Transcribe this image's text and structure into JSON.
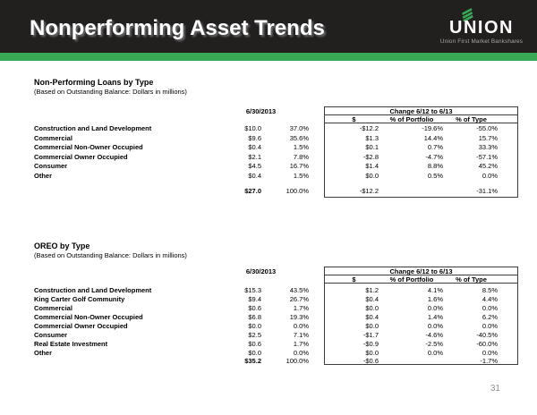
{
  "slide": {
    "title": "Nonperforming Asset Trends",
    "page_number": "31",
    "logo": {
      "name": "UNION",
      "tagline": "Union First Market Bankshares"
    },
    "colors": {
      "header_bg": "#221f1f",
      "accent_green": "#38a957"
    }
  },
  "tables": [
    {
      "title": "Non-Performing Loans by Type",
      "subtitle": "(Based on Outstanding Balance: Dollars in millions)",
      "date_header": "6/30/2013",
      "change_header": "Change 6/12 to 6/13",
      "columns": {
        "dollar": "$",
        "portfolio": "% of Portfolio",
        "type": "% of Type"
      },
      "rows": [
        {
          "label": "Construction and Land Development",
          "amount": "$10.0",
          "pct": "37.0%",
          "chg_amount": "-$12.2",
          "chg_portfolio": "-19.6%",
          "chg_type": "-55.0%"
        },
        {
          "label": "Commercial",
          "amount": "$9.6",
          "pct": "35.6%",
          "chg_amount": "$1.3",
          "chg_portfolio": "14.4%",
          "chg_type": "15.7%"
        },
        {
          "label": "Commercial Non-Owner Occupied",
          "amount": "$0.4",
          "pct": "1.5%",
          "chg_amount": "$0.1",
          "chg_portfolio": "0.7%",
          "chg_type": "33.3%"
        },
        {
          "label": "Commercial Owner Occupied",
          "amount": "$2.1",
          "pct": "7.8%",
          "chg_amount": "-$2.8",
          "chg_portfolio": "-4.7%",
          "chg_type": "-57.1%"
        },
        {
          "label": "Consumer",
          "amount": "$4.5",
          "pct": "16.7%",
          "chg_amount": "$1.4",
          "chg_portfolio": "8.8%",
          "chg_type": "45.2%"
        },
        {
          "label": "Other",
          "amount": "$0.4",
          "pct": "1.5%",
          "chg_amount": "$0.0",
          "chg_portfolio": "0.5%",
          "chg_type": "0.0%"
        }
      ],
      "total": {
        "amount": "$27.0",
        "pct": "100.0%",
        "chg_amount": "-$12.2",
        "chg_portfolio": "",
        "chg_type": "-31.1%"
      }
    },
    {
      "title": "OREO by Type",
      "subtitle": "(Based on Outstanding Balance: Dollars in millions)",
      "date_header": "6/30/2013",
      "change_header": "Change 6/12 to 6/13",
      "columns": {
        "dollar": "$",
        "portfolio": "% of Portfolio",
        "type": "% of Type"
      },
      "rows": [
        {
          "label": "Construction and Land Development",
          "amount": "$15.3",
          "pct": "43.5%",
          "chg_amount": "$1.2",
          "chg_portfolio": "4.1%",
          "chg_type": "8.5%"
        },
        {
          "label": "King Carter Golf Community",
          "amount": "$9.4",
          "pct": "26.7%",
          "chg_amount": "$0.4",
          "chg_portfolio": "1.6%",
          "chg_type": "4.4%"
        },
        {
          "label": "Commercial",
          "amount": "$0.6",
          "pct": "1.7%",
          "chg_amount": "$0.0",
          "chg_portfolio": "0.0%",
          "chg_type": "0.0%"
        },
        {
          "label": "Commercial Non-Owner Occupied",
          "amount": "$6.8",
          "pct": "19.3%",
          "chg_amount": "$0.4",
          "chg_portfolio": "1.4%",
          "chg_type": "6.2%"
        },
        {
          "label": "Commercial Owner Occupied",
          "amount": "$0.0",
          "pct": "0.0%",
          "chg_amount": "$0.0",
          "chg_portfolio": "0.0%",
          "chg_type": "0.0%"
        },
        {
          "label": "Consumer",
          "amount": "$2.5",
          "pct": "7.1%",
          "chg_amount": "-$1.7",
          "chg_portfolio": "-4.6%",
          "chg_type": "-40.5%"
        },
        {
          "label": "Real Estate Investment",
          "amount": "$0.6",
          "pct": "1.7%",
          "chg_amount": "-$0.9",
          "chg_portfolio": "-2.5%",
          "chg_type": "-60.0%"
        },
        {
          "label": "Other",
          "amount": "$0.0",
          "pct": "0.0%",
          "chg_amount": "$0.0",
          "chg_portfolio": "0.0%",
          "chg_type": "0.0%"
        }
      ],
      "total": {
        "amount": "$35.2",
        "pct": "100.0%",
        "chg_amount": "-$0.6",
        "chg_portfolio": "",
        "chg_type": "-1.7%"
      }
    }
  ]
}
